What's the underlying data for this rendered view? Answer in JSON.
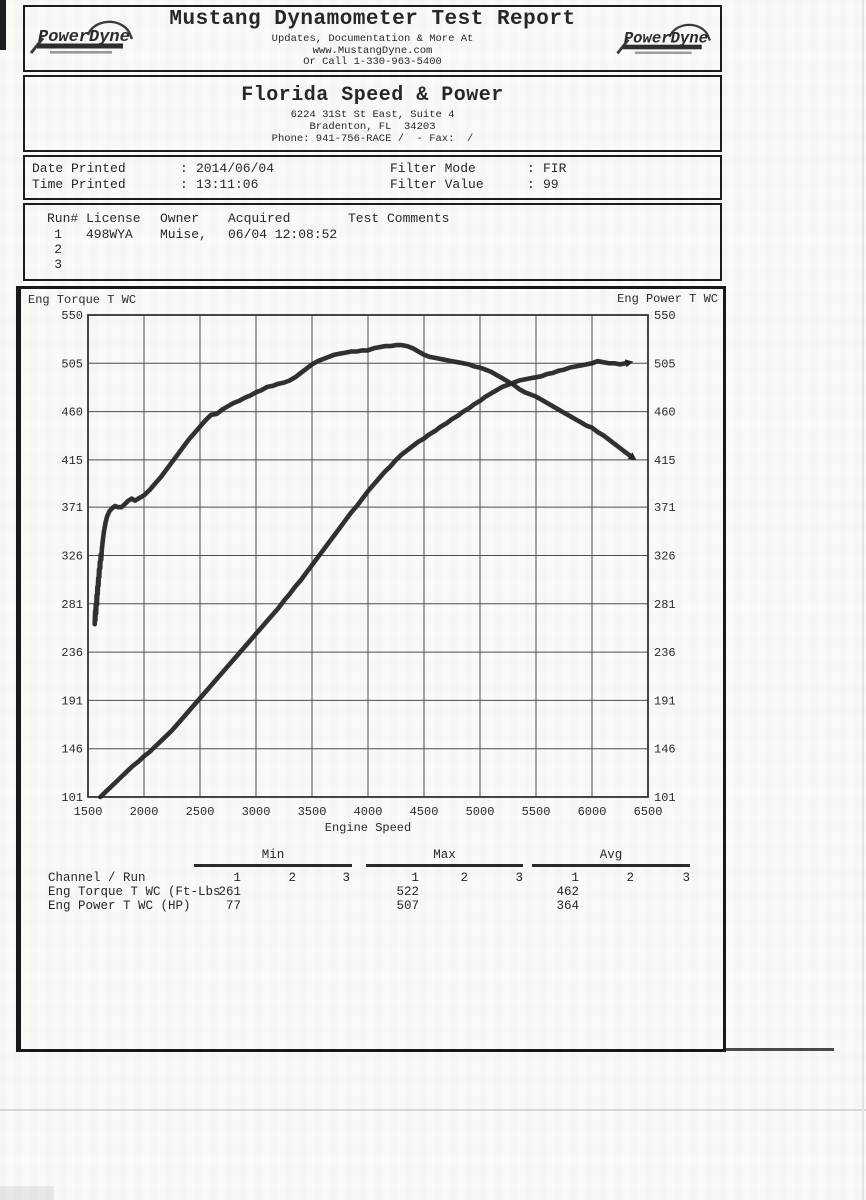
{
  "page": {
    "header": {
      "title": "Mustang Dynamometer Test Report",
      "subtitle1": "Updates, Documentation & More At",
      "subtitle2": "www.MustangDyne.com",
      "subtitle3": "Or Call 1-330-963-5400",
      "logo_text": "PowerDyne"
    },
    "shop": {
      "name": "Florida Speed & Power",
      "address1": "6224 31St St East, Suite 4",
      "address2": "Bradenton, FL  34203",
      "phone": "Phone: 941-756-RACE /  - Fax:  /"
    },
    "print_info": {
      "colon": ":",
      "rows": [
        {
          "label": "Date Printed",
          "value": "2014/06/04",
          "label2": "Filter Mode",
          "value2": "FIR"
        },
        {
          "label": "Time Printed",
          "value": "13:11:06",
          "label2": "Filter Value",
          "value2": "99"
        }
      ]
    },
    "runs": {
      "headers": {
        "run": "Run#",
        "license": "License",
        "owner": "Owner",
        "acquired": "Acquired",
        "comments": "Test Comments"
      },
      "rows": [
        {
          "run": "1",
          "license": "498WYA",
          "owner": "Muise,",
          "acquired": "06/04 12:08:52",
          "comments": ""
        },
        {
          "run": "2",
          "license": "",
          "owner": "",
          "acquired": "",
          "comments": ""
        },
        {
          "run": "3",
          "license": "",
          "owner": "",
          "acquired": "",
          "comments": ""
        }
      ]
    },
    "stats": {
      "group_headers": [
        "Min",
        "Max",
        "Avg"
      ],
      "channel_header": "Channel / Run",
      "run_headers": [
        "1",
        "2",
        "3"
      ],
      "rows": [
        {
          "label": "Eng Torque T WC (Ft-Lbs",
          "values": [
            [
              "261",
              "",
              ""
            ],
            [
              "522",
              "",
              ""
            ],
            [
              "462",
              "",
              ""
            ]
          ]
        },
        {
          "label": "Eng Power T WC (HP)",
          "values": [
            [
              "77",
              "",
              ""
            ],
            [
              "507",
              "",
              ""
            ],
            [
              "364",
              "",
              ""
            ]
          ]
        }
      ]
    }
  },
  "chart_data": {
    "type": "line",
    "title": "",
    "xlabel": "Engine Speed",
    "left_axis_label": "Eng Torque T WC",
    "right_axis_label": "Eng Power T WC",
    "xlim": [
      1500,
      6500
    ],
    "ylim": [
      101,
      550
    ],
    "x_ticks": [
      1500,
      2000,
      2500,
      3000,
      3500,
      4000,
      4500,
      5000,
      5500,
      6000,
      6500
    ],
    "y_ticks": [
      550,
      505,
      460,
      415,
      371,
      326,
      281,
      236,
      191,
      146,
      101
    ],
    "grid": true,
    "legend_position": "none",
    "series": [
      {
        "id": "torque",
        "name": "Eng Torque T WC (Ft-Lbs)",
        "min": 261,
        "max": 522,
        "avg": 462,
        "points": [
          [
            1560,
            262
          ],
          [
            1563,
            274
          ],
          [
            1566,
            266
          ],
          [
            1570,
            281
          ],
          [
            1573,
            272
          ],
          [
            1577,
            289
          ],
          [
            1580,
            280
          ],
          [
            1584,
            297
          ],
          [
            1587,
            290
          ],
          [
            1591,
            305
          ],
          [
            1594,
            298
          ],
          [
            1598,
            313
          ],
          [
            1601,
            306
          ],
          [
            1605,
            320
          ],
          [
            1609,
            314
          ],
          [
            1613,
            327
          ],
          [
            1618,
            322
          ],
          [
            1624,
            332
          ],
          [
            1632,
            340
          ],
          [
            1642,
            348
          ],
          [
            1655,
            356
          ],
          [
            1670,
            362
          ],
          [
            1690,
            367
          ],
          [
            1715,
            370
          ],
          [
            1740,
            372
          ],
          [
            1770,
            371
          ],
          [
            1800,
            371
          ],
          [
            1830,
            374
          ],
          [
            1860,
            377
          ],
          [
            1890,
            379
          ],
          [
            1920,
            377
          ],
          [
            1950,
            379
          ],
          [
            2000,
            382
          ],
          [
            2050,
            387
          ],
          [
            2100,
            393
          ],
          [
            2150,
            399
          ],
          [
            2200,
            406
          ],
          [
            2250,
            413
          ],
          [
            2300,
            420
          ],
          [
            2350,
            427
          ],
          [
            2400,
            434
          ],
          [
            2450,
            440
          ],
          [
            2500,
            446
          ],
          [
            2550,
            452
          ],
          [
            2600,
            457
          ],
          [
            2650,
            458
          ],
          [
            2700,
            462
          ],
          [
            2750,
            465
          ],
          [
            2800,
            468
          ],
          [
            2850,
            470
          ],
          [
            2900,
            473
          ],
          [
            2950,
            475
          ],
          [
            3000,
            478
          ],
          [
            3050,
            480
          ],
          [
            3100,
            483
          ],
          [
            3150,
            484
          ],
          [
            3200,
            486
          ],
          [
            3250,
            487
          ],
          [
            3300,
            489
          ],
          [
            3350,
            492
          ],
          [
            3400,
            496
          ],
          [
            3450,
            500
          ],
          [
            3500,
            504
          ],
          [
            3550,
            507
          ],
          [
            3600,
            509
          ],
          [
            3650,
            511
          ],
          [
            3700,
            513
          ],
          [
            3750,
            514
          ],
          [
            3800,
            515
          ],
          [
            3850,
            516
          ],
          [
            3900,
            516
          ],
          [
            3950,
            517
          ],
          [
            4000,
            517
          ],
          [
            4050,
            519
          ],
          [
            4100,
            520
          ],
          [
            4150,
            521
          ],
          [
            4200,
            521
          ],
          [
            4250,
            522
          ],
          [
            4300,
            522
          ],
          [
            4350,
            521
          ],
          [
            4400,
            519
          ],
          [
            4450,
            516
          ],
          [
            4500,
            513
          ],
          [
            4550,
            511
          ],
          [
            4600,
            510
          ],
          [
            4650,
            509
          ],
          [
            4700,
            508
          ],
          [
            4750,
            507
          ],
          [
            4800,
            506
          ],
          [
            4850,
            505
          ],
          [
            4900,
            504
          ],
          [
            4950,
            502
          ],
          [
            5000,
            501
          ],
          [
            5050,
            499
          ],
          [
            5100,
            497
          ],
          [
            5150,
            494
          ],
          [
            5200,
            491
          ],
          [
            5250,
            488
          ],
          [
            5300,
            485
          ],
          [
            5350,
            481
          ],
          [
            5400,
            478
          ],
          [
            5450,
            476
          ],
          [
            5500,
            474
          ],
          [
            5550,
            471
          ],
          [
            5600,
            468
          ],
          [
            5650,
            465
          ],
          [
            5700,
            462
          ],
          [
            5750,
            459
          ],
          [
            5800,
            456
          ],
          [
            5850,
            453
          ],
          [
            5900,
            450
          ],
          [
            5950,
            447
          ],
          [
            6000,
            445
          ],
          [
            6050,
            441
          ],
          [
            6100,
            438
          ],
          [
            6150,
            434
          ],
          [
            6200,
            430
          ],
          [
            6250,
            426
          ],
          [
            6300,
            422
          ],
          [
            6340,
            419
          ]
        ]
      },
      {
        "id": "power",
        "name": "Eng Power T WC (HP)",
        "min": 77,
        "max": 507,
        "avg": 364,
        "points": [
          [
            1610,
            101
          ],
          [
            1650,
            105
          ],
          [
            1700,
            110
          ],
          [
            1750,
            115
          ],
          [
            1800,
            120
          ],
          [
            1850,
            125
          ],
          [
            1900,
            130
          ],
          [
            1950,
            134
          ],
          [
            2000,
            139
          ],
          [
            2050,
            143
          ],
          [
            2100,
            148
          ],
          [
            2150,
            153
          ],
          [
            2200,
            158
          ],
          [
            2250,
            163
          ],
          [
            2300,
            169
          ],
          [
            2350,
            175
          ],
          [
            2400,
            181
          ],
          [
            2450,
            187
          ],
          [
            2500,
            193
          ],
          [
            2550,
            199
          ],
          [
            2600,
            205
          ],
          [
            2650,
            211
          ],
          [
            2700,
            217
          ],
          [
            2750,
            223
          ],
          [
            2800,
            229
          ],
          [
            2850,
            235
          ],
          [
            2900,
            241
          ],
          [
            2950,
            247
          ],
          [
            3000,
            253
          ],
          [
            3050,
            259
          ],
          [
            3100,
            265
          ],
          [
            3150,
            271
          ],
          [
            3200,
            277
          ],
          [
            3250,
            284
          ],
          [
            3300,
            290
          ],
          [
            3350,
            297
          ],
          [
            3400,
            303
          ],
          [
            3450,
            310
          ],
          [
            3500,
            317
          ],
          [
            3550,
            324
          ],
          [
            3600,
            331
          ],
          [
            3650,
            338
          ],
          [
            3700,
            345
          ],
          [
            3750,
            352
          ],
          [
            3800,
            359
          ],
          [
            3850,
            366
          ],
          [
            3900,
            372
          ],
          [
            3950,
            379
          ],
          [
            4000,
            386
          ],
          [
            4050,
            392
          ],
          [
            4100,
            398
          ],
          [
            4150,
            404
          ],
          [
            4200,
            409
          ],
          [
            4250,
            415
          ],
          [
            4300,
            420
          ],
          [
            4350,
            424
          ],
          [
            4400,
            428
          ],
          [
            4450,
            432
          ],
          [
            4500,
            435
          ],
          [
            4550,
            439
          ],
          [
            4600,
            442
          ],
          [
            4650,
            446
          ],
          [
            4700,
            449
          ],
          [
            4750,
            453
          ],
          [
            4800,
            456
          ],
          [
            4850,
            460
          ],
          [
            4900,
            463
          ],
          [
            4950,
            467
          ],
          [
            5000,
            470
          ],
          [
            5050,
            474
          ],
          [
            5100,
            477
          ],
          [
            5150,
            480
          ],
          [
            5200,
            483
          ],
          [
            5250,
            485
          ],
          [
            5300,
            487
          ],
          [
            5350,
            489
          ],
          [
            5400,
            490
          ],
          [
            5450,
            491
          ],
          [
            5500,
            492
          ],
          [
            5550,
            493
          ],
          [
            5600,
            495
          ],
          [
            5650,
            496
          ],
          [
            5700,
            498
          ],
          [
            5750,
            499
          ],
          [
            5800,
            501
          ],
          [
            5850,
            502
          ],
          [
            5900,
            503
          ],
          [
            5950,
            504
          ],
          [
            6000,
            505
          ],
          [
            6050,
            507
          ],
          [
            6100,
            506
          ],
          [
            6150,
            505
          ],
          [
            6200,
            505
          ],
          [
            6250,
            504
          ],
          [
            6300,
            505
          ]
        ]
      }
    ]
  }
}
